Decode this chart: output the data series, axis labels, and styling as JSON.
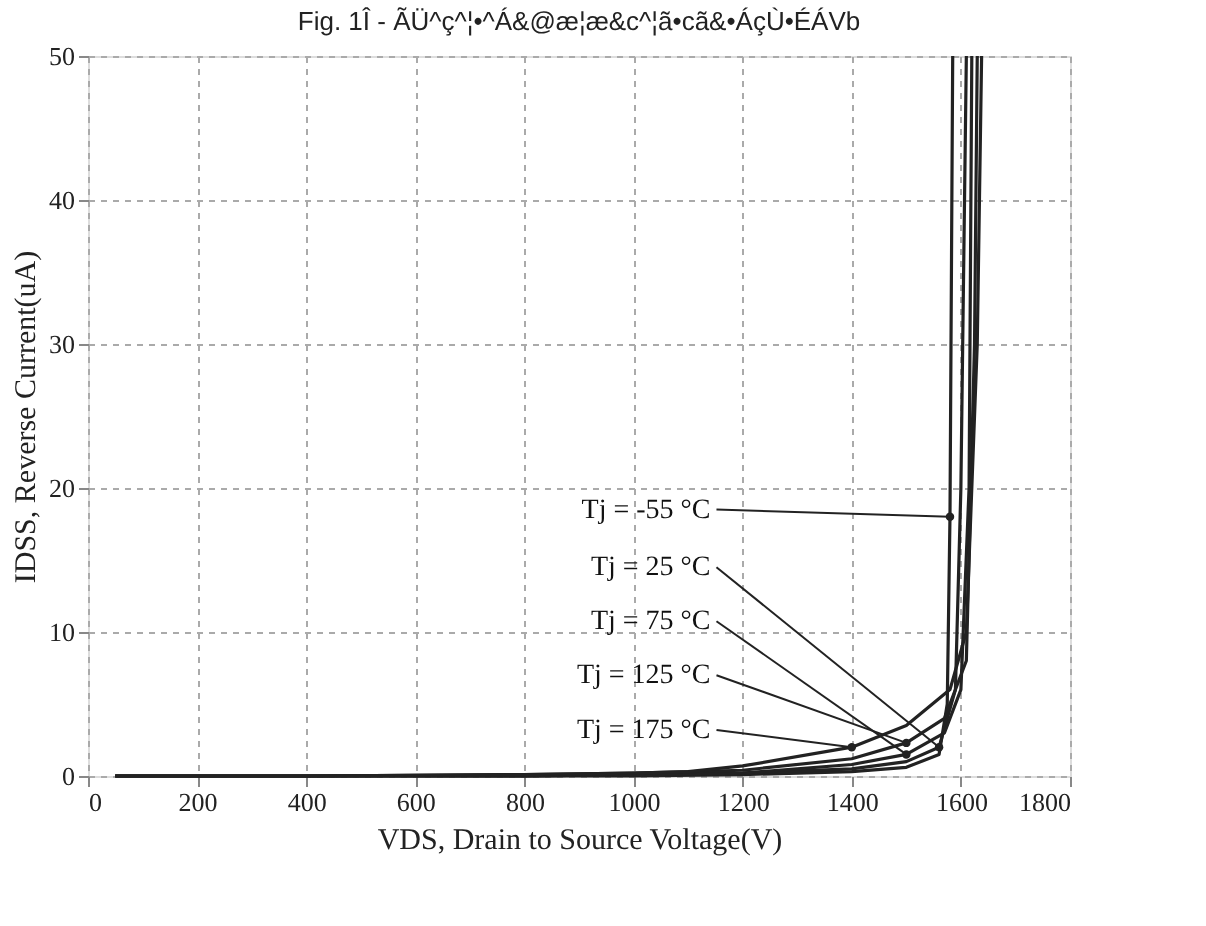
{
  "chart_data": {
    "type": "line",
    "title": "Fig. 1Î - ÃÜ^ç^¦•^Á&@æ¦æ&c^¦ã•cã&•ÁçÙ•ÉÁVb",
    "xlabel": "VDS, Drain to Source Voltage(V)",
    "ylabel": "IDSS, Reverse Current(uA)",
    "xlim": [
      0,
      1800
    ],
    "xticks": [
      0,
      200,
      400,
      600,
      800,
      1000,
      1200,
      1400,
      1600,
      1800
    ],
    "ylim": [
      0,
      50
    ],
    "yticks": [
      0,
      10,
      20,
      30,
      40,
      50
    ],
    "grid": true,
    "legend": false,
    "marker": "none",
    "line_style": "solid",
    "annotations": [
      {
        "text": "Tj = -55 °C",
        "x": 1580,
        "y": 18
      },
      {
        "text": "Tj = 25 °C",
        "x": 1560,
        "y": 2
      },
      {
        "text": "Tj = 75 °C",
        "x": 1500,
        "y": 1.5
      },
      {
        "text": "Tj = 125 °C",
        "x": 1500,
        "y": 2.3
      },
      {
        "text": "Tj = 175 °C",
        "x": 1400,
        "y": 2
      }
    ],
    "series": [
      {
        "color": "#222222",
        "x": [
          50,
          400,
          800,
          1000,
          1200,
          1400,
          1500,
          1560,
          1575,
          1580,
          1585
        ],
        "values": [
          0,
          0,
          0,
          0,
          0.1,
          0.3,
          0.6,
          1.5,
          5,
          18,
          50
        ]
      },
      {
        "color": "#222222",
        "x": [
          50,
          400,
          800,
          1000,
          1200,
          1400,
          1500,
          1560,
          1590,
          1600,
          1610
        ],
        "values": [
          0,
          0,
          0,
          0.1,
          0.2,
          0.5,
          1,
          2,
          6,
          20,
          50
        ]
      },
      {
        "color": "#222222",
        "x": [
          50,
          400,
          800,
          1000,
          1200,
          1400,
          1500,
          1570,
          1600,
          1615,
          1620
        ],
        "values": [
          0,
          0,
          0,
          0.1,
          0.2,
          0.8,
          1.5,
          3,
          6,
          20,
          50
        ]
      },
      {
        "color": "#222222",
        "x": [
          50,
          400,
          800,
          1000,
          1200,
          1400,
          1500,
          1570,
          1610,
          1625,
          1630
        ],
        "values": [
          0,
          0,
          0.1,
          0.2,
          0.4,
          1.2,
          2.3,
          4,
          8,
          30,
          50
        ]
      },
      {
        "color": "#222222",
        "x": [
          50,
          400,
          800,
          1000,
          1100,
          1200,
          1400,
          1500,
          1580,
          1610,
          1630,
          1638
        ],
        "values": [
          0,
          0,
          0.1,
          0.2,
          0.3,
          0.7,
          2,
          3.5,
          6,
          10,
          30,
          50
        ]
      }
    ]
  }
}
